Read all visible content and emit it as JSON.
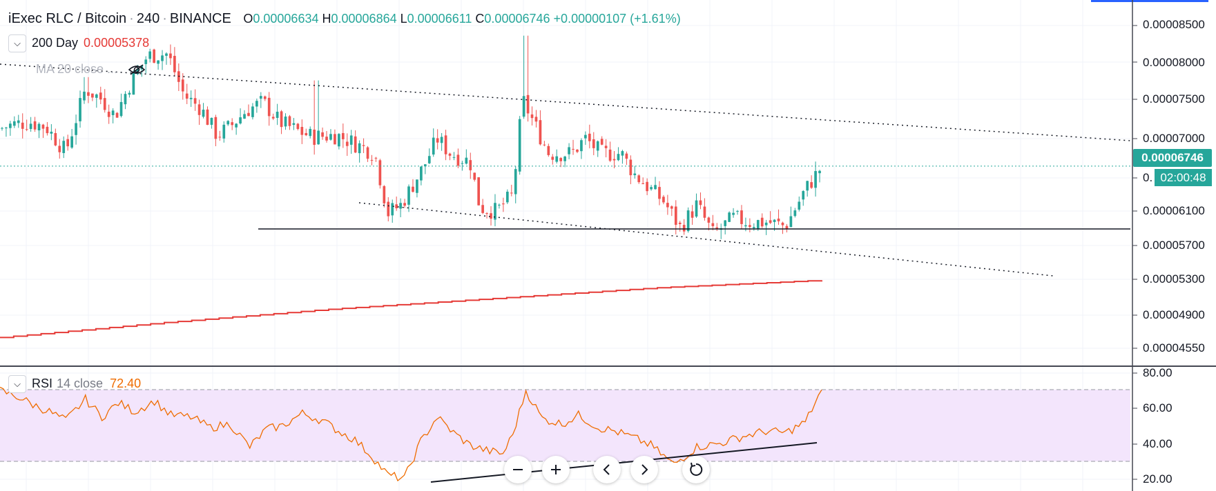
{
  "header": {
    "symbol": "iExec RLC / Bitcoin",
    "interval": "240",
    "exchange": "BINANCE",
    "open_key": "O",
    "open": "0.00006634",
    "high_key": "H",
    "high": "0.00006864",
    "low_key": "L",
    "low": "0.00006611",
    "close_key": "C",
    "close": "0.00006746",
    "change": "+0.00000107 (+1.61%)"
  },
  "indicators": {
    "ma200": {
      "label": "200 Day",
      "value": "0.00005378"
    },
    "ma20": {
      "label": "MA 20 close ..."
    },
    "rsi": {
      "name": "RSI",
      "params": "14 close",
      "value": "72.40"
    }
  },
  "price_axis": {
    "labels": [
      "0.00008500",
      "0.00008000",
      "0.00007500",
      "0.00007000",
      "0.00006100",
      "0.00005700",
      "0.00005300",
      "0.00004900",
      "0.00004550"
    ],
    "partial_label": "0.",
    "last_price_tag": "0.00006746",
    "countdown": "02:00:48"
  },
  "rsi_axis": {
    "labels": [
      "80.00",
      "60.00",
      "40.00",
      "20.00"
    ]
  },
  "colors": {
    "up": "#26a69a",
    "down": "#ef5350",
    "ma200": "#e53935",
    "rsi_line": "#ef6c00",
    "rsi_band": "#f3e5fc",
    "grid": "#f0f3fa"
  },
  "controls": [
    "zoom-out-icon",
    "zoom-in-icon",
    "scroll-left-icon",
    "scroll-right-icon",
    "reset-icon"
  ],
  "chart_data": [
    {
      "type": "candlestick",
      "title": "iExec RLC / Bitcoin",
      "ylim": [
        4.35e-05,
        8.75e-05
      ],
      "bar_count": 200,
      "price_path": [
        [
          0,
          7.2e-05
        ],
        [
          8,
          7.25e-05
        ],
        [
          18,
          7.28e-05
        ],
        [
          28,
          7.22e-05
        ],
        [
          40,
          6.92e-05
        ],
        [
          52,
          7.68e-05
        ],
        [
          62,
          7.55e-05
        ],
        [
          70,
          7.35e-05
        ],
        [
          80,
          7.78e-05
        ],
        [
          90,
          8.08e-05
        ],
        [
          102,
          8.1e-05
        ],
        [
          112,
          7.6e-05
        ],
        [
          122,
          7.45e-05
        ],
        [
          132,
          7.12e-05
        ],
        [
          140,
          7.22e-05
        ],
        [
          150,
          7.42e-05
        ],
        [
          160,
          7.52e-05
        ],
        [
          170,
          7.28e-05
        ],
        [
          180,
          7.18e-05
        ],
        [
          190,
          7.1e-05
        ],
        [
          205,
          7.12e-05
        ],
        [
          218,
          7e-05
        ],
        [
          228,
          6.9e-05
        ],
        [
          236,
          6.18e-05
        ],
        [
          244,
          6.28e-05
        ],
        [
          258,
          6.75e-05
        ],
        [
          266,
          7.08e-05
        ],
        [
          274,
          6.9e-05
        ],
        [
          286,
          6.8e-05
        ],
        [
          292,
          6.25e-05
        ],
        [
          302,
          6.2e-05
        ],
        [
          312,
          6.4e-05
        ],
        [
          318,
          7.55e-05
        ],
        [
          326,
          7.22e-05
        ],
        [
          334,
          6.9e-05
        ],
        [
          348,
          6.9e-05
        ],
        [
          356,
          7.08e-05
        ],
        [
          366,
          6.9e-05
        ],
        [
          378,
          6.9e-05
        ],
        [
          386,
          6.65e-05
        ],
        [
          394,
          6.5e-05
        ],
        [
          404,
          6.32e-05
        ],
        [
          414,
          6e-05
        ],
        [
          424,
          6.28e-05
        ],
        [
          434,
          5.92e-05
        ],
        [
          446,
          6.12e-05
        ],
        [
          456,
          6.07e-05
        ],
        [
          468,
          6.07e-05
        ],
        [
          478,
          6.02e-05
        ],
        [
          490,
          6.46e-05
        ],
        [
          500,
          6.74e-05
        ]
      ],
      "spikes": [
        {
          "x": 319,
          "high": 8.32e-05
        },
        {
          "x": 52,
          "high": 7.82e-05
        },
        {
          "x": 192,
          "high": 7.78e-05
        }
      ],
      "series": [
        {
          "name": "200 Day",
          "x": [
            0,
            100,
            200,
            300,
            400,
            500
          ],
          "values": [
            4.68e-05,
            4.86e-05,
            5.02e-05,
            5.15e-05,
            5.28e-05,
            5.37e-05
          ]
        }
      ]
    },
    {
      "type": "line",
      "name": "RSI 14 close",
      "ylim": [
        15,
        85
      ],
      "x": [
        0,
        12,
        20,
        30,
        40,
        52,
        62,
        72,
        82,
        94,
        104,
        116,
        128,
        140,
        152,
        162,
        172,
        184,
        196,
        206,
        216,
        226,
        236,
        246,
        256,
        266,
        276,
        286,
        296,
        306,
        312,
        320,
        330,
        342,
        352,
        364,
        374,
        386,
        396,
        410,
        424,
        438,
        452,
        466,
        478,
        490,
        500
      ],
      "values": [
        72,
        68,
        64,
        60,
        55,
        67,
        57,
        65,
        60,
        66,
        58,
        57,
        51,
        53,
        40,
        50,
        52,
        59,
        55,
        49,
        44,
        35,
        24,
        22,
        43,
        57,
        48,
        41,
        38,
        36,
        47,
        72,
        56,
        53,
        58,
        51,
        49,
        45,
        41,
        30,
        40,
        42,
        46,
        49,
        48,
        54,
        72.4
      ]
    }
  ]
}
